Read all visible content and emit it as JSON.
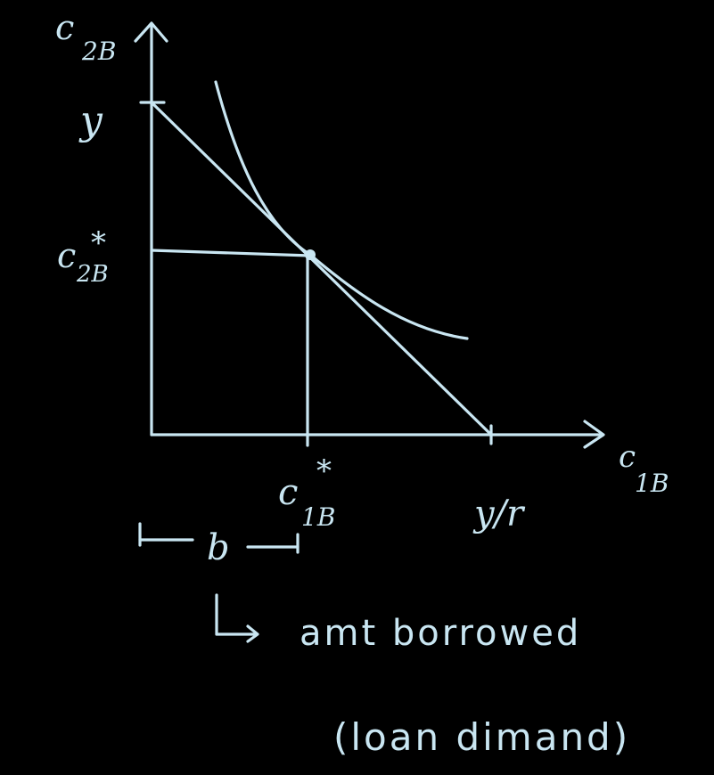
{
  "colors": {
    "background": "#000000",
    "ink": "#c9e6f2"
  },
  "axes": {
    "y_axis_label_main": "c",
    "y_axis_label_sub": "2B",
    "x_axis_label_main": "c",
    "x_axis_label_sub": "1B"
  },
  "ticks": {
    "y_intercept": "y",
    "c2b_star_main": "c",
    "c2b_star_sub": "2B",
    "c1b_star_main": "c",
    "c1b_star_sub": "1B",
    "star": "*",
    "x_intercept": "y/r"
  },
  "annotations": {
    "bracket_label": "b",
    "arrow_symbol": "↳",
    "amount_borrowed": "amt    borrowed",
    "loan_demand": "(loan dimand)"
  }
}
